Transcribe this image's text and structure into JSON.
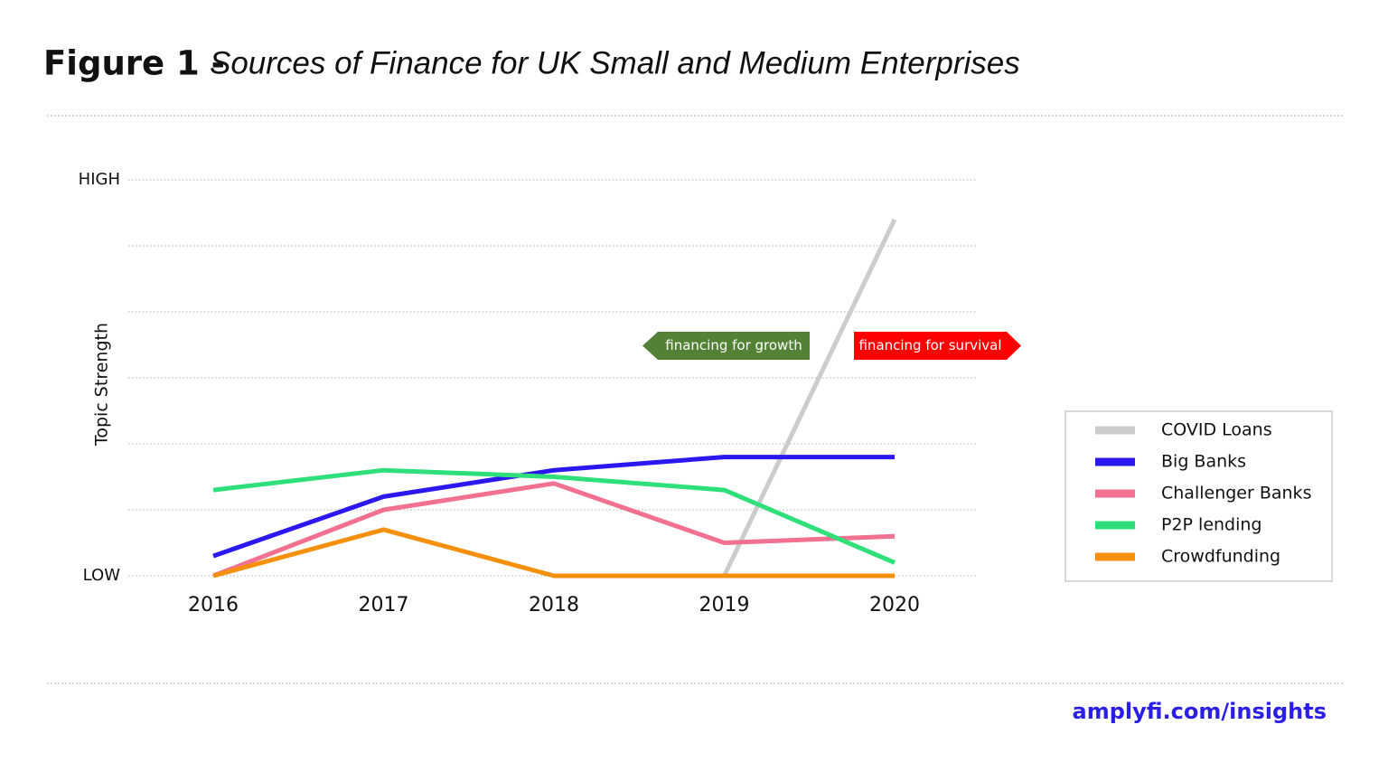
{
  "chart_data": {
    "type": "line",
    "title": "Figure 1 -",
    "subtitle": "Sources of Finance for UK Small and Medium Enterprises",
    "y_label": "Topic Strength",
    "categories": [
      "2016",
      "2017",
      "2018",
      "2019",
      "2020"
    ],
    "series": [
      {
        "name": "COVID Loans",
        "color": "#cccccc",
        "values": [
          null,
          null,
          null,
          0,
          5.4
        ]
      },
      {
        "name": "Big Banks",
        "color": "#2b17f0",
        "values": [
          0.3,
          1.2,
          1.6,
          1.8,
          1.8
        ]
      },
      {
        "name": "Challenger Banks",
        "color": "#f27191",
        "values": [
          0,
          1.0,
          1.4,
          0.5,
          0.6
        ]
      },
      {
        "name": "P2P lending",
        "color": "#2fe07a",
        "values": [
          1.3,
          1.6,
          1.5,
          1.3,
          0.2
        ]
      },
      {
        "name": "Crowdfunding",
        "color": "#f5900c",
        "values": [
          0,
          0.7,
          0,
          0,
          0
        ]
      }
    ],
    "ylim": [
      0,
      6
    ],
    "yticks": [
      {
        "value": 0,
        "label": "LOW"
      },
      {
        "value": 1,
        "label": null
      },
      {
        "value": 2,
        "label": null
      },
      {
        "value": 3,
        "label": null
      },
      {
        "value": 4,
        "label": null
      },
      {
        "value": 5,
        "label": null
      },
      {
        "value": 6,
        "label": "HIGH"
      }
    ],
    "grid": true,
    "legend": "right",
    "annotations": [
      {
        "text": "financing for growth",
        "color": "#538135",
        "arrow": "left"
      },
      {
        "text": "financing for survival",
        "color": "#ff0000",
        "arrow": "right"
      }
    ],
    "footer": "amplyfi.com/insights"
  }
}
